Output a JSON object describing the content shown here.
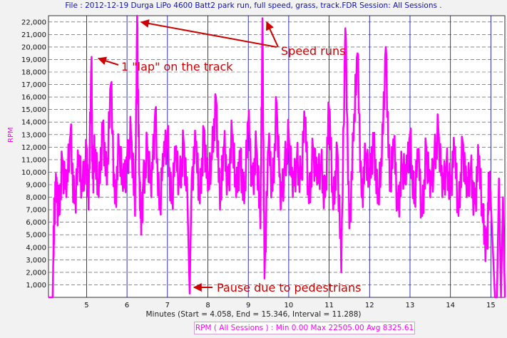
{
  "header": {
    "title": "File : 2012-12-19 Durga LiPo 4600 Batt2 park run, full speed, grass, track.FDR   Session: All Sessions ."
  },
  "colors": {
    "series": "#ff00ff",
    "annotation": "#cc0000",
    "grid_vertical": "#0000aa",
    "grid_horizontal": "#444444",
    "title": "#1010b0"
  },
  "chart_data": {
    "type": "line",
    "title": "File : 2012-12-19 Durga LiPo 4600 Batt2 park run, full speed, grass, track.FDR   Session: All Sessions .",
    "xlabel": "Minutes (Start = 4.058,  End = 15.346,  Interval = 11.288)",
    "ylabel": "RPM",
    "xlim": [
      4.058,
      15.346
    ],
    "ylim": [
      0,
      22500
    ],
    "x_ticks": [
      5,
      6,
      7,
      8,
      9,
      10,
      11,
      12,
      13,
      14,
      15
    ],
    "y_ticks": [
      "1,000",
      "2,000",
      "3,000",
      "4,000",
      "5,000",
      "6,000",
      "7,000",
      "8,000",
      "9,000",
      "10,000",
      "11,000",
      "12,000",
      "13,000",
      "14,000",
      "15,000",
      "16,000",
      "17,000",
      "18,000",
      "19,000",
      "20,000",
      "21,000",
      "22,000"
    ],
    "y_tick_values": [
      1000,
      2000,
      3000,
      4000,
      5000,
      6000,
      7000,
      8000,
      9000,
      10000,
      11000,
      12000,
      13000,
      14000,
      15000,
      16000,
      17000,
      18000,
      19000,
      20000,
      21000,
      22000
    ],
    "grid": true,
    "legend_text": "RPM ( All Sessions ) :  Min 0.00     Max 22505.00     Avg 8325.61",
    "series": [
      {
        "name": "RPM ( All Sessions )",
        "x": [
          4.06,
          4.16,
          4.18,
          4.2,
          4.25,
          4.3,
          4.4,
          4.5,
          4.6,
          4.7,
          4.8,
          4.9,
          5.0,
          5.05,
          5.12,
          5.15,
          5.2,
          5.3,
          5.4,
          5.5,
          5.6,
          5.7,
          5.8,
          5.9,
          6.0,
          6.1,
          6.2,
          6.25,
          6.3,
          6.35,
          6.4,
          6.5,
          6.6,
          6.7,
          6.8,
          6.9,
          7.0,
          7.1,
          7.2,
          7.3,
          7.4,
          7.5,
          7.55,
          7.6,
          7.7,
          7.8,
          7.9,
          8.0,
          8.1,
          8.2,
          8.3,
          8.4,
          8.5,
          8.6,
          8.7,
          8.8,
          8.9,
          9.0,
          9.1,
          9.2,
          9.3,
          9.35,
          9.4,
          9.5,
          9.6,
          9.7,
          9.8,
          9.9,
          10.0,
          10.1,
          10.2,
          10.3,
          10.4,
          10.5,
          10.6,
          10.7,
          10.8,
          10.9,
          11.0,
          11.1,
          11.2,
          11.3,
          11.4,
          11.5,
          11.6,
          11.7,
          11.8,
          11.9,
          12.0,
          12.1,
          12.2,
          12.3,
          12.4,
          12.5,
          12.6,
          12.7,
          12.8,
          12.9,
          13.0,
          13.1,
          13.2,
          13.3,
          13.4,
          13.5,
          13.6,
          13.7,
          13.8,
          13.9,
          14.0,
          14.1,
          14.2,
          14.3,
          14.4,
          14.5,
          14.6,
          14.7,
          14.8,
          14.9,
          14.95,
          15.0,
          15.1,
          15.15,
          15.2,
          15.25,
          15.3,
          15.346
        ],
        "y": [
          0,
          0,
          3500,
          7000,
          8500,
          6500,
          11000,
          8000,
          13000,
          7500,
          10500,
          8500,
          12000,
          7000,
          19000,
          9500,
          11500,
          8000,
          14000,
          9000,
          17000,
          7500,
          12000,
          8500,
          11000,
          13000,
          6500,
          22500,
          10000,
          5000,
          9000,
          12000,
          8000,
          15000,
          7000,
          10500,
          13000,
          7500,
          11000,
          9000,
          12500,
          7000,
          300,
          9500,
          12000,
          7500,
          13500,
          8500,
          11000,
          16000,
          7000,
          12000,
          9000,
          13000,
          8000,
          11500,
          7500,
          14000,
          9000,
          12000,
          5500,
          22300,
          1500,
          12000,
          8500,
          15500,
          7000,
          10500,
          13000,
          8000,
          11000,
          9500,
          14000,
          7500,
          12000,
          9000,
          10500,
          8000,
          15000,
          7000,
          12000,
          2000,
          21500,
          5500,
          12500,
          19500,
          8000,
          11000,
          9000,
          13000,
          7500,
          10500,
          20000,
          8500,
          12000,
          7000,
          10500,
          9000,
          13000,
          7500,
          11000,
          6500,
          12000,
          8000,
          11000,
          13500,
          8000,
          10500,
          9000,
          11500,
          6500,
          12500,
          8000,
          10000,
          7500,
          11000,
          6000,
          4000,
          9000,
          7500,
          0,
          0,
          9500,
          0,
          8000,
          0
        ]
      }
    ],
    "annotations": [
      {
        "text": "Speed runs"
      },
      {
        "text": "1 \"lap\" on the track"
      },
      {
        "text": "Pause due to pedestrians"
      }
    ]
  }
}
